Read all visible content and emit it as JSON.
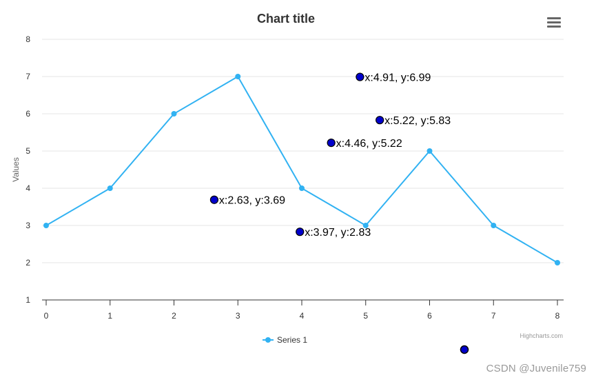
{
  "chart_data": {
    "type": "line",
    "title": "Chart title",
    "ylabel": "Values",
    "xlabel": "",
    "x": [
      0,
      1,
      2,
      3,
      4,
      5,
      6,
      7,
      8
    ],
    "xlim": [
      0,
      8
    ],
    "ylim": [
      1,
      8
    ],
    "x_ticks": [
      "0",
      "1",
      "2",
      "3",
      "4",
      "5",
      "6",
      "7",
      "8"
    ],
    "y_ticks": [
      "1",
      "2",
      "3",
      "4",
      "5",
      "6",
      "7",
      "8"
    ],
    "grid": "horizontal",
    "legend": "bottom-center",
    "series": [
      {
        "name": "Series 1",
        "color": "#31b2f2",
        "values": [
          3,
          4,
          6,
          7,
          4,
          3,
          5,
          3,
          2
        ]
      }
    ],
    "annotations": [
      {
        "x": 4.91,
        "y": 6.99,
        "label": "x:4.91, y:6.99"
      },
      {
        "x": 5.22,
        "y": 5.83,
        "label": "x:5.22, y:5.83"
      },
      {
        "x": 4.46,
        "y": 5.22,
        "label": "x:4.46, y:5.22"
      },
      {
        "x": 2.63,
        "y": 3.69,
        "label": "x:2.63, y:3.69"
      },
      {
        "x": 3.97,
        "y": 2.83,
        "label": "x:3.97, y:2.83"
      }
    ],
    "annotation_color": "#0000cc",
    "credits": "Highcharts.com"
  },
  "watermark": "CSDN @Juvenile759",
  "menu_icon": "hamburger-menu-icon"
}
